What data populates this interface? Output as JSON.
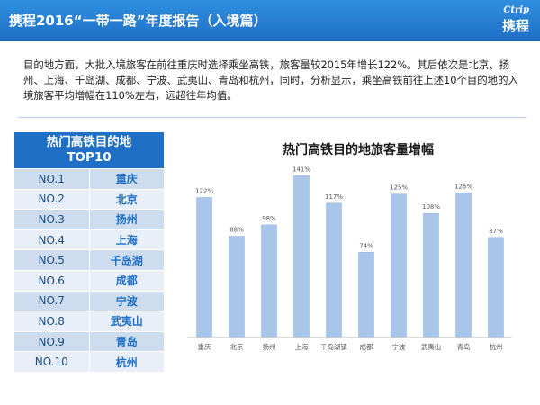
{
  "header": {
    "title": "携程2016“一带一路”年度报告（入境篇）",
    "logo_top": "Ctrip",
    "logo_bottom": "携程"
  },
  "intro": "目的地方面，大批入境旅客在前往重庆时选择乘坐高铁，旅客量较2015年增长122%。其后依次是北京、扬州、上海、千岛湖、成都、宁波、武夷山、青岛和杭州，同时，分析显示，乘坐高铁前往上述10个目的地的入境旅客平均增幅在110%左右，远超往年均值。",
  "colors": {
    "header": "#1f6fc6",
    "bar": "#a9c6ea",
    "bar_edge": "#8eb2de"
  },
  "table": {
    "title_line1": "热门高铁目的地",
    "title_line2": "TOP10",
    "rows": [
      {
        "rank": "NO.1",
        "city": "重庆"
      },
      {
        "rank": "NO.2",
        "city": "北京"
      },
      {
        "rank": "NO.3",
        "city": "扬州"
      },
      {
        "rank": "NO.4",
        "city": "上海"
      },
      {
        "rank": "NO.5",
        "city": "千岛湖"
      },
      {
        "rank": "NO.6",
        "city": "成都"
      },
      {
        "rank": "NO.7",
        "city": "宁波"
      },
      {
        "rank": "NO.8",
        "city": "武夷山"
      },
      {
        "rank": "NO.9",
        "city": "青岛"
      },
      {
        "rank": "NO.10",
        "city": "杭州"
      }
    ]
  },
  "chart_data": {
    "type": "bar",
    "title": "热门高铁目的地旅客量增幅",
    "categories": [
      "重庆",
      "北京",
      "扬州",
      "上海",
      "千岛湖镇",
      "成都",
      "宁波",
      "武夷山",
      "青岛",
      "杭州"
    ],
    "values": [
      122,
      88,
      98,
      141,
      117,
      74,
      125,
      108,
      126,
      87
    ],
    "labels": [
      "122%",
      "88%",
      "98%",
      "141%",
      "117%",
      "74%",
      "125%",
      "108%",
      "126%",
      "87%"
    ],
    "unit": "%",
    "xlabel": "",
    "ylabel": "",
    "ylim": [
      0,
      150
    ],
    "grid": false
  }
}
